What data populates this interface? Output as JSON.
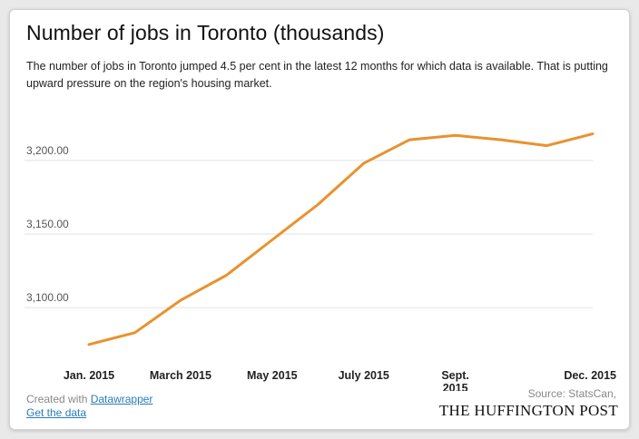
{
  "chart_data": {
    "type": "line",
    "title": "Number of jobs in Toronto (thousands)",
    "subtitle": "The number of jobs in Toronto jumped 4.5 per cent in the latest 12 months for which data is available. That is putting upward pressure on the region's housing market.",
    "x": [
      "2015-01",
      "2015-02",
      "2015-03",
      "2015-04",
      "2015-05",
      "2015-06",
      "2015-07",
      "2015-08",
      "2015-09",
      "2015-10",
      "2015-11",
      "2015-12"
    ],
    "x_tick_labels": [
      {
        "x": "2015-01",
        "lines": [
          "Jan. 2015"
        ]
      },
      {
        "x": "2015-03",
        "lines": [
          "March 2015"
        ]
      },
      {
        "x": "2015-05",
        "lines": [
          "May 2015"
        ]
      },
      {
        "x": "2015-07",
        "lines": [
          "July 2015"
        ]
      },
      {
        "x": "2015-09",
        "lines": [
          "Sept.",
          "2015"
        ]
      },
      {
        "x": "2015-12",
        "lines": [
          "Dec. 2015"
        ]
      }
    ],
    "series": [
      {
        "values": [
          3075,
          3083,
          3105,
          3122,
          3146,
          3170,
          3198,
          3214,
          3217,
          3214,
          3210,
          3218
        ]
      }
    ],
    "y_ticks": [
      3100,
      3150,
      3200
    ],
    "y_tick_labels": [
      "3,100.00",
      "3,150.00",
      "3,200.00"
    ],
    "ylim": [
      3065,
      3227
    ],
    "grid": true,
    "line_color": "#e8922f"
  },
  "footer": {
    "created_with_prefix": "Created with",
    "created_with_link": "Datawrapper",
    "get_data": "Get the data",
    "source": "Source: StatsCan,",
    "brand": "THE HUFFINGTON POST"
  }
}
